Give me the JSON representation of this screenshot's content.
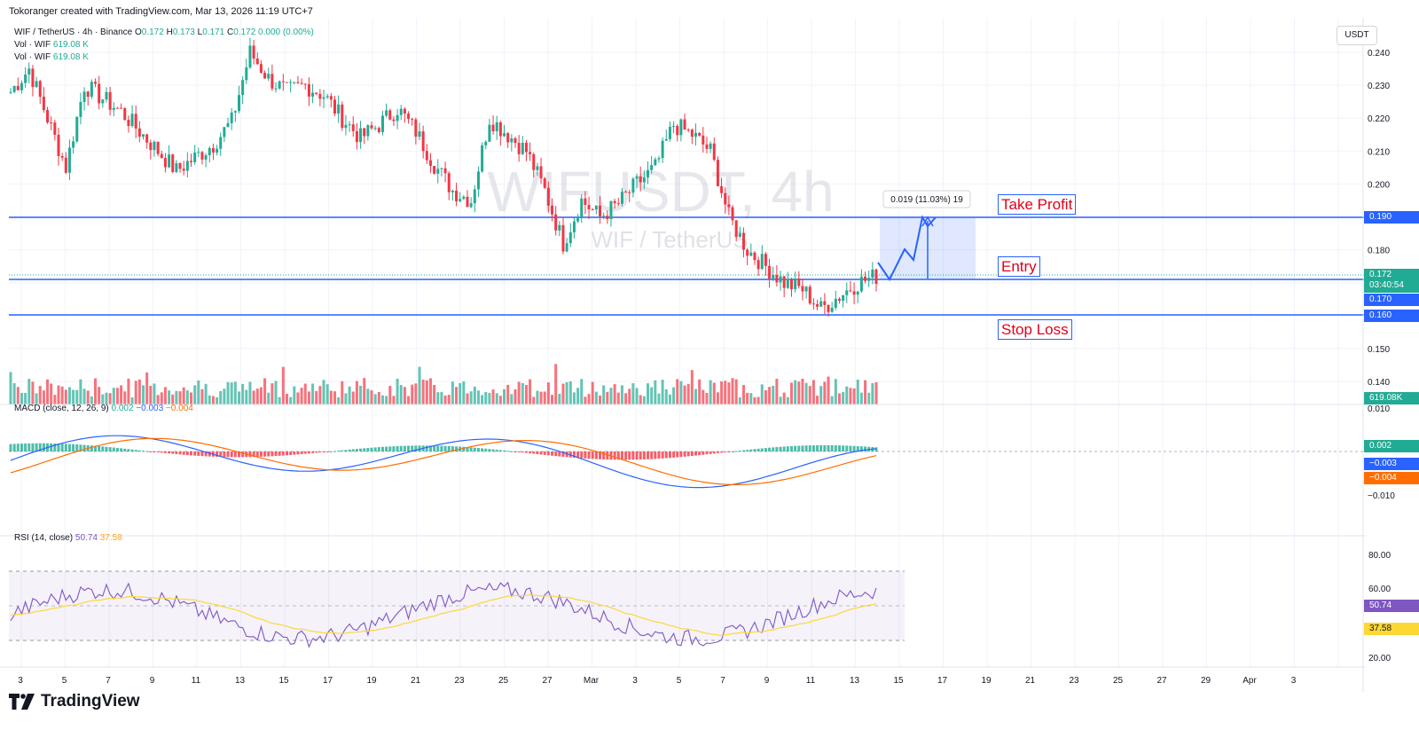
{
  "header": {
    "credit": "Tokoranger created with TradingView.com, Mar 13, 2026 11:19 UTC+7",
    "symbol_line": "WIF / TetherUS · 4h · Binance",
    "ohlc": {
      "o_label": "O",
      "o": "0.172",
      "h_label": "H",
      "h": "0.173",
      "l_label": "L",
      "l": "0.171",
      "c_label": "C",
      "c": "0.172",
      "change": "0.000 (0.00%)"
    },
    "vol_lines": [
      {
        "label": "Vol · WIF",
        "value": "619.08 K"
      },
      {
        "label": "Vol · WIF",
        "value": "619.08 K"
      }
    ]
  },
  "watermark": {
    "main": "WIFUSDT, 4h",
    "sub": "WIF / TetherUS"
  },
  "price_axis": {
    "currency": "USDT",
    "ticks": [
      "0.240",
      "0.230",
      "0.220",
      "0.210",
      "0.200",
      "0.190",
      "0.180",
      "0.170",
      "0.160",
      "0.150",
      "0.140"
    ],
    "tags": {
      "take_profit": "0.190",
      "last": "0.172",
      "countdown": "03:40:54",
      "entry": "0.170",
      "stop_loss": "0.160",
      "volume": "619.08K"
    }
  },
  "annotations": {
    "take_profit": "Take Profit",
    "entry": "Entry",
    "stop_loss": "Stop Loss",
    "projection": "0.019 (11.03%) 19"
  },
  "macd": {
    "legend_title": "MACD (close, 12, 26, 9)",
    "hist": "0.002",
    "macd": "−0.003",
    "signal": "−0.004",
    "axis_ticks": [
      "0.010",
      "−0.010"
    ],
    "tags": {
      "hist": "0.002",
      "macd": "−0.003",
      "signal": "−0.004"
    }
  },
  "rsi": {
    "legend_title": "RSI (14, close)",
    "value": "50.74",
    "ma": "37.58",
    "axis_ticks": [
      "80.00",
      "60.00",
      "20.00"
    ],
    "tags": {
      "rsi": "50.74",
      "ma": "37.58"
    }
  },
  "time_axis": {
    "labels": [
      "3",
      "5",
      "7",
      "9",
      "11",
      "13",
      "15",
      "17",
      "19",
      "21",
      "23",
      "25",
      "27",
      "Mar",
      "3",
      "5",
      "7",
      "9",
      "11",
      "13",
      "15",
      "17",
      "19",
      "21",
      "23",
      "25",
      "27",
      "29",
      "Apr",
      "3"
    ]
  },
  "footer": {
    "brand": "TradingView"
  },
  "colors": {
    "up": "#22ab94",
    "down": "#f23645",
    "blue": "#2962ff",
    "orange": "#ff6d00",
    "rsi": "#7e57c2",
    "rsi_ma": "#fdd835"
  },
  "chart_data": {
    "type": "candlestick",
    "symbol": "WIFUSDT",
    "timeframe": "4h",
    "levels": {
      "take_profit": 0.19,
      "entry": 0.17,
      "stop_loss": 0.16,
      "last": 0.172
    },
    "price_range": [
      0.135,
      0.245
    ],
    "close_path": [
      0.228,
      0.235,
      0.22,
      0.205,
      0.23,
      0.226,
      0.222,
      0.216,
      0.21,
      0.204,
      0.208,
      0.212,
      0.219,
      0.24,
      0.232,
      0.228,
      0.23,
      0.227,
      0.22,
      0.214,
      0.218,
      0.223,
      0.216,
      0.206,
      0.198,
      0.195,
      0.22,
      0.215,
      0.21,
      0.198,
      0.182,
      0.195,
      0.19,
      0.194,
      0.2,
      0.205,
      0.218,
      0.215,
      0.21,
      0.19,
      0.18,
      0.175,
      0.17,
      0.168,
      0.162,
      0.166,
      0.17,
      0.172
    ],
    "rsi_range": [
      20,
      80
    ],
    "macd_range": [
      -0.012,
      0.012
    ]
  }
}
